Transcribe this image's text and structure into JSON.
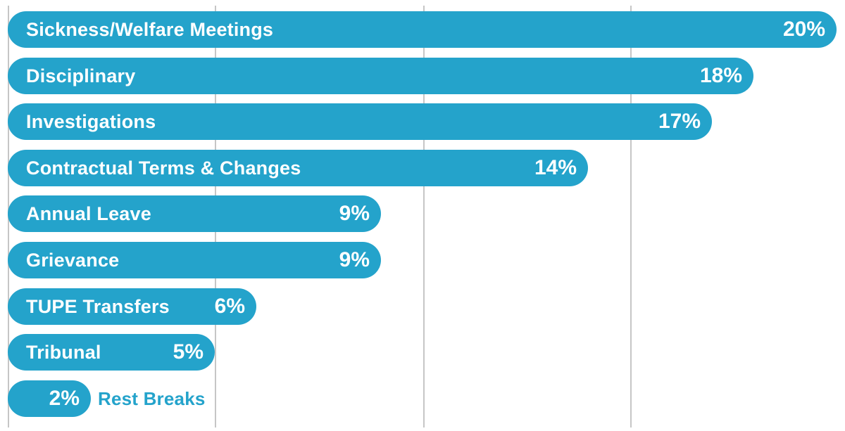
{
  "chart_data": {
    "type": "bar",
    "orientation": "horizontal",
    "categories": [
      "Sickness/Welfare Meetings",
      "Disciplinary",
      "Investigations",
      "Contractual Terms & Changes",
      "Annual Leave",
      "Grievance",
      "TUPE Transfers",
      "Tribunal",
      "Rest Breaks"
    ],
    "values": [
      20,
      18,
      17,
      14,
      9,
      9,
      6,
      5,
      2
    ],
    "value_labels": [
      "20%",
      "18%",
      "17%",
      "14%",
      "9%",
      "9%",
      "6%",
      "5%",
      "2%"
    ],
    "unit": "%",
    "xlim": [
      0,
      20
    ],
    "grid": true,
    "bar_color": "#24a3cb",
    "gridline_color": "#c6c6c6"
  }
}
